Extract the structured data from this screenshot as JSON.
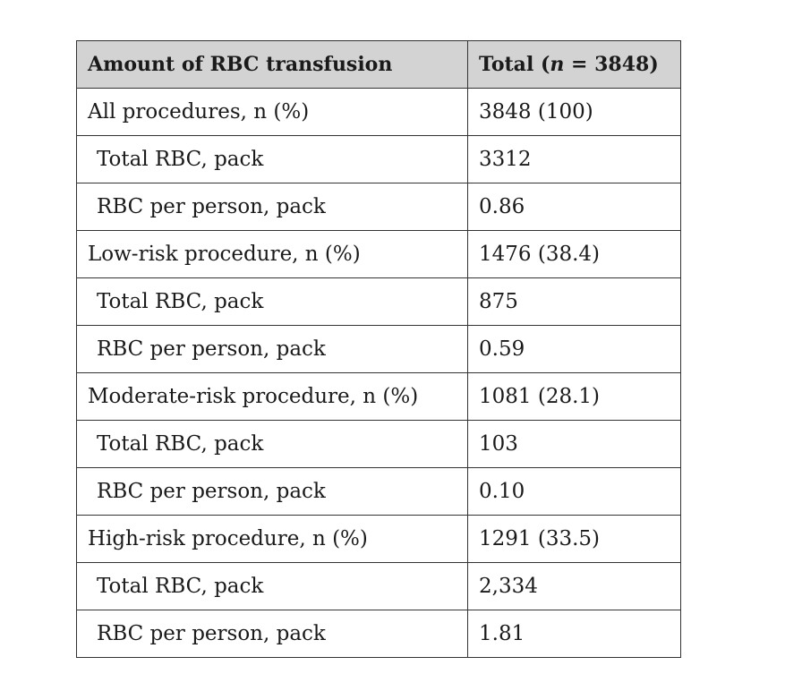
{
  "table": {
    "headers": {
      "col1": "Amount of RBC transfusion",
      "col2_prefix": "Total (",
      "col2_var": "n",
      "col2_suffix": " = 3848)"
    },
    "rows": [
      {
        "label": "All procedures, n (%)",
        "value": "3848 (100)",
        "indent": false
      },
      {
        "label": "Total RBC, pack",
        "value": "3312",
        "indent": true
      },
      {
        "label": "RBC per person, pack",
        "value": "0.86",
        "indent": true
      },
      {
        "label": "Low-risk procedure, n (%)",
        "value": "1476 (38.4)",
        "indent": false
      },
      {
        "label": "Total RBC, pack",
        "value": "875",
        "indent": true
      },
      {
        "label": "RBC per person, pack",
        "value": "0.59",
        "indent": true
      },
      {
        "label": "Moderate-risk procedure, n (%)",
        "value": "1081 (28.1)",
        "indent": false
      },
      {
        "label": "Total RBC, pack",
        "value": "103",
        "indent": true
      },
      {
        "label": "RBC per person, pack",
        "value": "0.10",
        "indent": true
      },
      {
        "label": "High-risk procedure, n (%)",
        "value": "1291 (33.5)",
        "indent": false
      },
      {
        "label": "Total RBC, pack",
        "value": "2,334",
        "indent": true
      },
      {
        "label": "RBC per person, pack",
        "value": "1.81",
        "indent": true
      }
    ]
  }
}
